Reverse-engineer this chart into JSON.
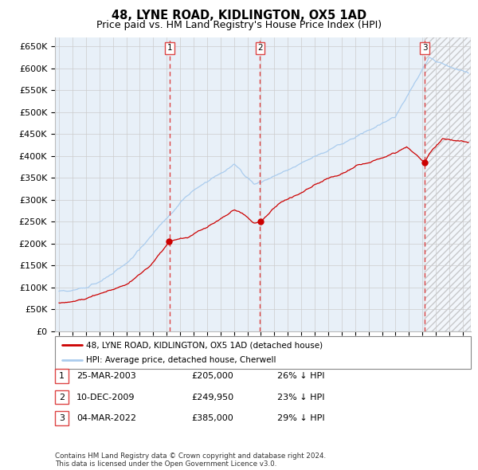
{
  "title": "48, LYNE ROAD, KIDLINGTON, OX5 1AD",
  "subtitle": "Price paid vs. HM Land Registry's House Price Index (HPI)",
  "ylim": [
    0,
    670000
  ],
  "yticks": [
    0,
    50000,
    100000,
    150000,
    200000,
    250000,
    300000,
    350000,
    400000,
    450000,
    500000,
    550000,
    600000,
    650000
  ],
  "sale1_date": 2003.22,
  "sale1_price": 205000,
  "sale2_date": 2009.94,
  "sale2_price": 249950,
  "sale3_date": 2022.17,
  "sale3_price": 385000,
  "hpi_color": "#aaccee",
  "price_color": "#cc0000",
  "vline_color": "#dd4444",
  "bg_color": "#e8f0f8",
  "hatch_bg_color": "#f0f4f8",
  "grid_color": "#cccccc",
  "legend1": "48, LYNE ROAD, KIDLINGTON, OX5 1AD (detached house)",
  "legend2": "HPI: Average price, detached house, Cherwell",
  "table_rows": [
    [
      "1",
      "25-MAR-2003",
      "£205,000",
      "26% ↓ HPI"
    ],
    [
      "2",
      "10-DEC-2009",
      "£249,950",
      "23% ↓ HPI"
    ],
    [
      "3",
      "04-MAR-2022",
      "£385,000",
      "29% ↓ HPI"
    ]
  ],
  "footnote": "Contains HM Land Registry data © Crown copyright and database right 2024.\nThis data is licensed under the Open Government Licence v3.0.",
  "title_fontsize": 10.5,
  "subtitle_fontsize": 9
}
